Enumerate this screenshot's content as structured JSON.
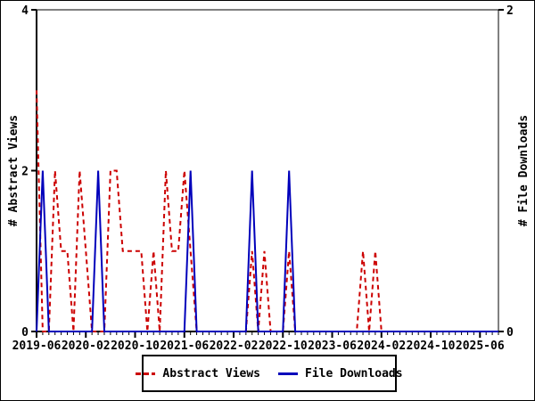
{
  "chart_data": {
    "type": "line",
    "categories": [
      "2019-06",
      "2019-07",
      "2019-08",
      "2019-09",
      "2019-10",
      "2019-11",
      "2019-12",
      "2020-01",
      "2020-02",
      "2020-03",
      "2020-04",
      "2020-05",
      "2020-06",
      "2020-07",
      "2020-08",
      "2020-09",
      "2020-10",
      "2020-11",
      "2020-12",
      "2021-01",
      "2021-02",
      "2021-03",
      "2021-04",
      "2021-05",
      "2021-06",
      "2021-07",
      "2021-08",
      "2021-09",
      "2021-10",
      "2021-11",
      "2021-12",
      "2022-01",
      "2022-02",
      "2022-03",
      "2022-04",
      "2022-05",
      "2022-06",
      "2022-07",
      "2022-08",
      "2022-09",
      "2022-10",
      "2022-11",
      "2022-12",
      "2023-01",
      "2023-02",
      "2023-03",
      "2023-04",
      "2023-05",
      "2023-06",
      "2023-07",
      "2023-08",
      "2023-09",
      "2023-10",
      "2023-11",
      "2023-12",
      "2024-01",
      "2024-02",
      "2024-03",
      "2024-04",
      "2024-05",
      "2024-06",
      "2024-07",
      "2024-08",
      "2024-09",
      "2024-10",
      "2024-11",
      "2024-12",
      "2025-01",
      "2025-02",
      "2025-03",
      "2025-04",
      "2025-05",
      "2025-06",
      "2025-07",
      "2025-08",
      "2025-09"
    ],
    "series": [
      {
        "name": "Abstract Views",
        "axis": "left",
        "style": "dashed",
        "color": "#cc0000",
        "values": [
          3,
          0,
          0,
          2,
          1,
          1,
          0,
          2,
          1,
          0,
          0,
          0,
          2,
          2,
          1,
          1,
          1,
          1,
          0,
          1,
          0,
          2,
          1,
          1,
          2,
          1,
          0,
          0,
          0,
          0,
          0,
          0,
          0,
          0,
          0,
          1,
          0,
          1,
          0,
          0,
          0,
          1,
          0,
          0,
          0,
          0,
          0,
          0,
          0,
          0,
          0,
          0,
          0,
          1,
          0,
          1,
          0,
          0,
          0,
          0,
          0,
          0,
          0,
          0,
          0,
          0,
          0,
          0,
          0,
          0,
          0,
          0,
          0,
          0,
          0,
          0
        ]
      },
      {
        "name": "File Downloads",
        "axis": "right",
        "style": "solid",
        "color": "#0000bb",
        "values": [
          0,
          1,
          0,
          0,
          0,
          0,
          0,
          0,
          0,
          0,
          1,
          0,
          0,
          0,
          0,
          0,
          0,
          0,
          0,
          0,
          0,
          0,
          0,
          0,
          0,
          1,
          0,
          0,
          0,
          0,
          0,
          0,
          0,
          0,
          0,
          1,
          0,
          0,
          0,
          0,
          0,
          1,
          0,
          0,
          0,
          0,
          0,
          0,
          0,
          0,
          0,
          0,
          0,
          0,
          0,
          0,
          0,
          0,
          0,
          0,
          0,
          0,
          0,
          0,
          0,
          0,
          0,
          0,
          0,
          0,
          0,
          0,
          0,
          0,
          0,
          0
        ]
      }
    ],
    "left_axis": {
      "label": "# Abstract Views",
      "min": 0,
      "max": 4,
      "ticks": [
        0,
        2,
        4
      ]
    },
    "right_axis": {
      "label": "# File Downloads",
      "min": 0,
      "max": 2,
      "ticks": [
        0,
        2
      ]
    },
    "x_axis": {
      "major_tick_every_months": 8,
      "major_labels": [
        "2019-06",
        "2020-02",
        "2020-10",
        "2021-06",
        "2022-02",
        "2022-10",
        "2023-06",
        "2024-02",
        "2024-10",
        "2025-06"
      ]
    },
    "grid": false,
    "legend_position": "bottom-center"
  },
  "colors": {
    "abstract_views": "#cc0000",
    "file_downloads": "#0000bb",
    "axis": "#000000",
    "background": "#ffffff"
  },
  "legend": {
    "abstract_views_label": "Abstract Views",
    "file_downloads_label": "File Downloads"
  }
}
